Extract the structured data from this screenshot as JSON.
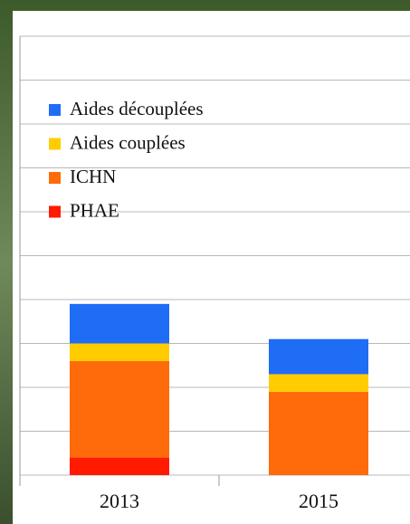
{
  "chart_data": {
    "type": "stacked-bar",
    "categories": [
      "2013",
      "2015"
    ],
    "series": [
      {
        "name": "PHAE",
        "color": "#ff1a00",
        "values": [
          0.4,
          0
        ]
      },
      {
        "name": "ICHN",
        "color": "#ff6a0a",
        "values": [
          2.2,
          1.9
        ]
      },
      {
        "name": "Aides couplées",
        "color": "#ffcc00",
        "values": [
          0.4,
          0.4
        ]
      },
      {
        "name": "Aides découplées",
        "color": "#1f6cf5",
        "values": [
          0.9,
          0.8
        ]
      }
    ],
    "ylim": [
      0,
      10
    ],
    "yticks": [
      0,
      1,
      2,
      3,
      4,
      5,
      6,
      7,
      8,
      9,
      10
    ],
    "grid": true,
    "legend": "top-left"
  }
}
